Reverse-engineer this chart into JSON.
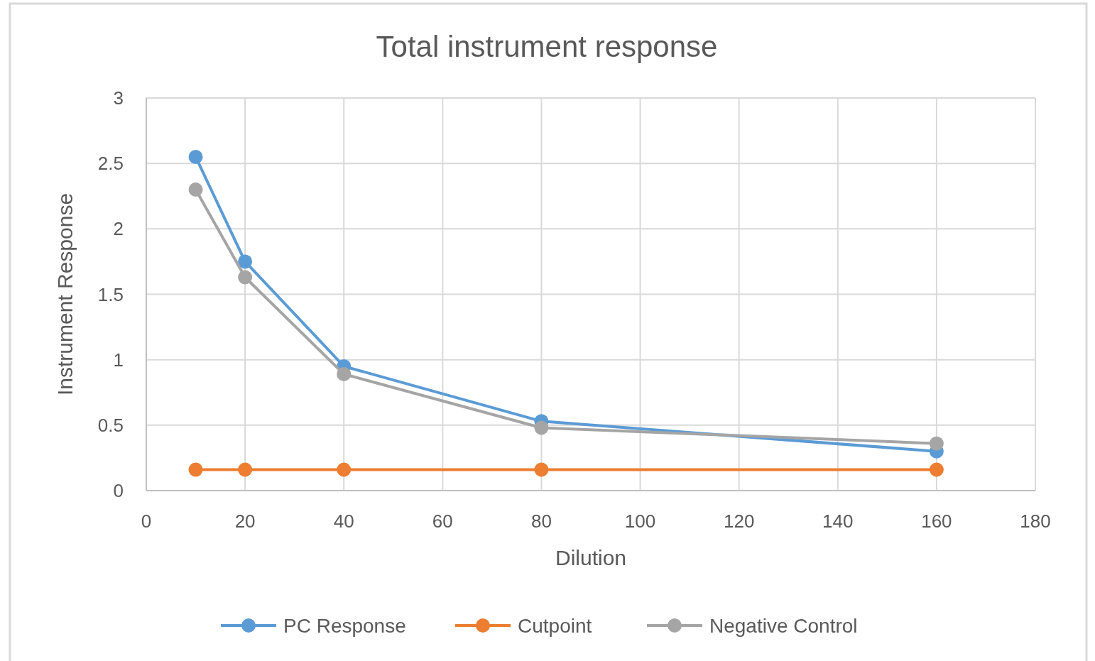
{
  "chart_data": {
    "type": "line",
    "title": "Total instrument response",
    "xlabel": "Dilution",
    "ylabel": "Instrument Response",
    "x": [
      10,
      20,
      40,
      80,
      160
    ],
    "series": [
      {
        "name": "PC Response",
        "color": "#5b9bd5",
        "values": [
          2.55,
          1.75,
          0.95,
          0.53,
          0.3
        ]
      },
      {
        "name": "Cutpoint",
        "color": "#ed7d31",
        "values": [
          0.16,
          0.16,
          0.16,
          0.16,
          0.16
        ]
      },
      {
        "name": "Negative Control",
        "color": "#a5a5a5",
        "values": [
          2.3,
          1.63,
          0.89,
          0.48,
          0.36
        ]
      }
    ],
    "xlim": [
      0,
      180
    ],
    "xticks": [
      0,
      20,
      40,
      60,
      80,
      100,
      120,
      140,
      160,
      180
    ],
    "ylim": [
      0,
      3
    ],
    "yticks": [
      0,
      0.5,
      1,
      1.5,
      2,
      2.5,
      3
    ],
    "grid": true,
    "legend": "bottom",
    "marker": "circle",
    "line_style": "solid"
  }
}
